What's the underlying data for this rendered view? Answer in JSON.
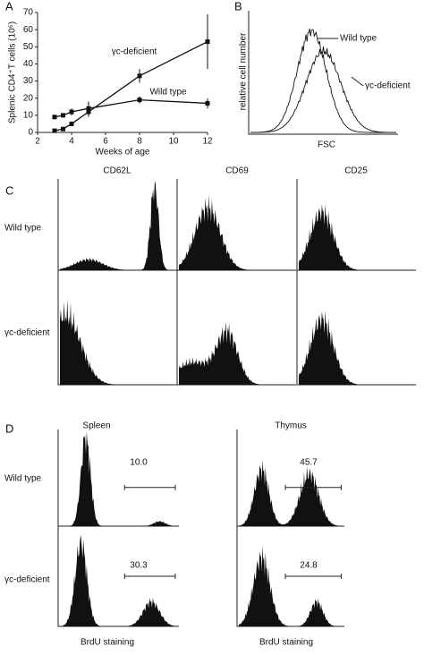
{
  "chart_data": {
    "type": "line",
    "panel": "A",
    "x": [
      3,
      3.5,
      4,
      5,
      8,
      12
    ],
    "series": [
      {
        "name": "γc-deficient",
        "color": "#111111",
        "values": [
          1,
          2,
          5,
          12,
          33,
          53
        ],
        "errors": [
          0,
          0,
          1,
          3,
          4,
          16
        ]
      },
      {
        "name": "Wild type",
        "color": "#111111",
        "values": [
          9,
          10,
          12,
          14,
          19,
          17
        ],
        "errors": [
          1,
          1,
          2,
          4,
          2,
          3
        ]
      }
    ],
    "xlabel": "Weeks of age",
    "ylabel": "Splenic CD4⁺T cells (10⁶)",
    "xlim": [
      2,
      12
    ],
    "xticks": [
      2,
      4,
      6,
      8,
      10,
      12
    ],
    "ylim": [
      0,
      70
    ],
    "yticks": [
      0,
      10,
      20,
      30,
      40,
      50,
      60,
      70
    ]
  },
  "panel_b": {
    "letter": "B",
    "ylabel": "relative cell number",
    "xlabel": "FSC",
    "labels": [
      "Wild type",
      "γc-deficient"
    ]
  },
  "panel_c": {
    "letter": "C",
    "columns": [
      "CD62L",
      "CD69",
      "CD25"
    ],
    "rows": [
      "Wild type",
      "γc-deficient"
    ]
  },
  "panel_d": {
    "letter": "D",
    "columns": [
      "Spleen",
      "Thymus"
    ],
    "rows": [
      "Wild type",
      "γc-deficient"
    ],
    "percentages": [
      [
        "10.0",
        "45.7"
      ],
      [
        "30.3",
        "24.8"
      ]
    ],
    "xlabel": "BrdU staining"
  }
}
